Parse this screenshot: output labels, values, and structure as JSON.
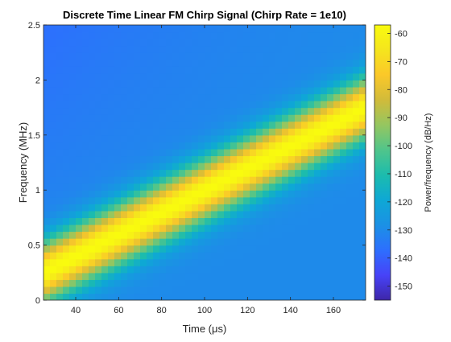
{
  "chart_data": {
    "type": "heatmap",
    "title": "Discrete Time Linear FM Chirp Signal (Chirp Rate = 1e10)",
    "xlabel": "Time (μs)",
    "ylabel": "Frequency (MHz)",
    "xlim": [
      25,
      175
    ],
    "ylim": [
      0,
      2.5
    ],
    "xticks": [
      40,
      60,
      80,
      100,
      120,
      140,
      160
    ],
    "yticks": [
      0,
      0.5,
      1,
      1.5,
      2,
      2.5
    ],
    "xtick_labels": [
      "40",
      "60",
      "80",
      "100",
      "120",
      "140",
      "160"
    ],
    "ytick_labels": [
      "0",
      "0.5",
      "1",
      "1.5",
      "2",
      "2.5"
    ],
    "grid": false,
    "chirp": {
      "start_time": 25,
      "start_frequency": 0.25,
      "end_time": 175,
      "end_frequency": 1.75,
      "chirp_rate": "1e10"
    },
    "colorbar": {
      "label": "Power/frequency (dB/Hz)",
      "range": [
        -155,
        -57
      ],
      "ticks": [
        -60,
        -70,
        -80,
        -90,
        -100,
        -110,
        -120,
        -130,
        -140,
        -150
      ],
      "tick_labels": [
        "-60",
        "-70",
        "-80",
        "-90",
        "-100",
        "-110",
        "-120",
        "-130",
        "-140",
        "-150"
      ],
      "colormap": "parula",
      "stops": [
        "#3e26a8",
        "#4743f8",
        "#2d6ffe",
        "#1b91e5",
        "#0ea8d5",
        "#1cbcad",
        "#50c58b",
        "#95c660",
        "#d1bb3a",
        "#fbc829",
        "#f5e51d",
        "#f9fb0e"
      ]
    },
    "levels": {
      "peak": -57,
      "floor": -130
    }
  }
}
